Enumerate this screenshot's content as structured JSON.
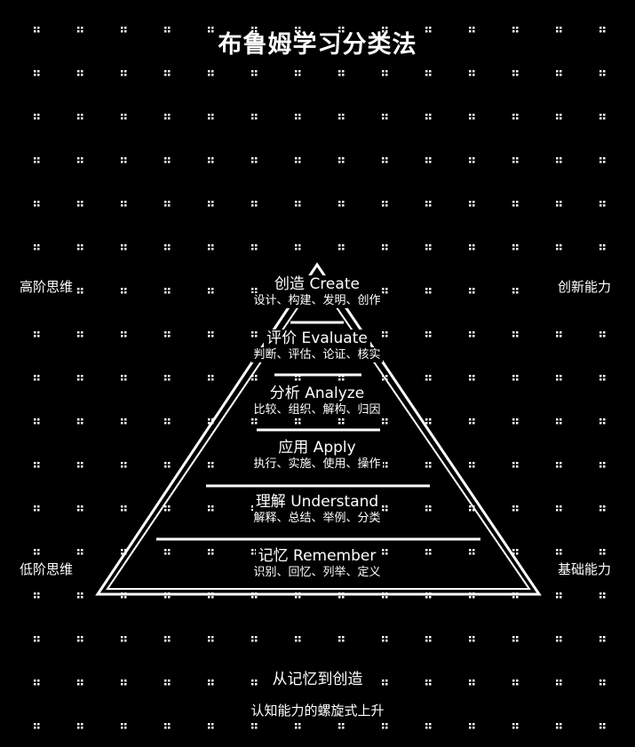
{
  "title": "布鲁姆学习分类法",
  "left_labels": {
    "top": "高阶思维",
    "bottom": "低阶思维"
  },
  "right_labels": {
    "top": "创新能力",
    "bottom": "基础能力"
  },
  "levels": [
    {
      "name": "创造 Create",
      "verbs": "设计、构建、发明、创作"
    },
    {
      "name": "评价 Evaluate",
      "verbs": "判断、评估、论证、核实"
    },
    {
      "name": "分析 Analyze",
      "verbs": "比较、组织、解构、归因"
    },
    {
      "name": "应用 Apply",
      "verbs": "执行、实施、使用、操作"
    },
    {
      "name": "理解 Understand",
      "verbs": "解释、总结、举例、分类"
    },
    {
      "name": "记忆 Remember",
      "verbs": "识别、回忆、列举、定义"
    }
  ],
  "footer": {
    "main": "从记忆到创造",
    "sub": "认知能力的螺旋式上升"
  },
  "colors": {
    "background": "#000000",
    "foreground": "#ffffff"
  }
}
